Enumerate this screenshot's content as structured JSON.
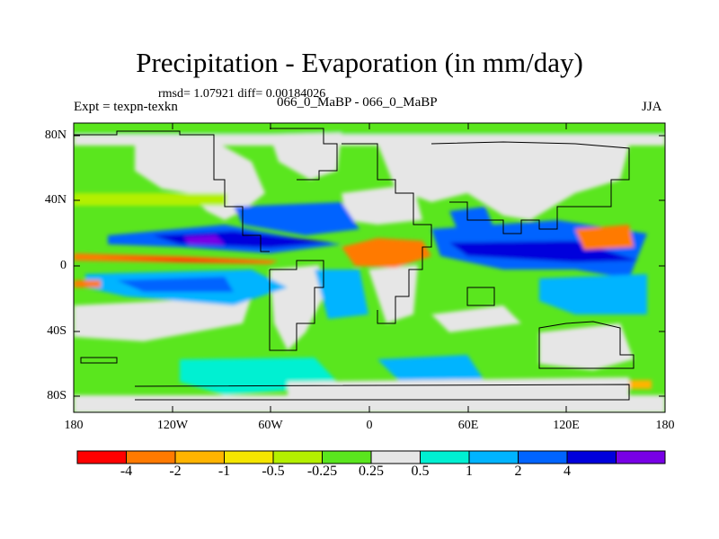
{
  "title": "Precipitation - Evaporation (in mm/day)",
  "stats": "rmsd= 1.07921 diff= 0.00184026",
  "expt": "Expt = texpn-texkn",
  "runs": "066_0_MaBP - 066_0_MaBP",
  "season": "JJA",
  "lat_labels": [
    "80N",
    "40N",
    "0",
    "40S",
    "80S"
  ],
  "lon_labels": [
    "180",
    "120W",
    "60W",
    "0",
    "60E",
    "120E",
    "180"
  ],
  "colorbar": {
    "colors": [
      "#ff0000",
      "#ff7a00",
      "#ffb400",
      "#f5e600",
      "#b4f000",
      "#5ae61e",
      "#e6e6e6",
      "#00f0d2",
      "#00b4ff",
      "#0064ff",
      "#0000dc",
      "#7800e6"
    ],
    "labels": [
      "-4",
      "-2",
      "-1",
      "-0.5",
      "-0.25",
      "0.25",
      "0.5",
      "1",
      "2",
      "4"
    ]
  }
}
